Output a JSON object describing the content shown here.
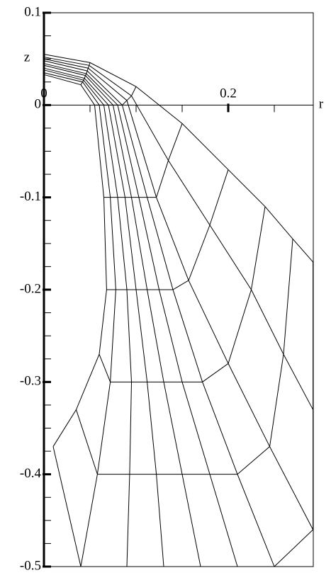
{
  "chart_data": {
    "type": "line",
    "xlabel": "r",
    "ylabel": "z",
    "xlim": [
      0,
      0.2923
    ],
    "ylim": [
      -0.5,
      0.1
    ],
    "xticks": [
      0,
      0.2
    ],
    "xminorticks": [
      0.05,
      0.1,
      0.15,
      0.25
    ],
    "yticks": [
      -0.5,
      -0.4,
      -0.3,
      -0.2,
      -0.1,
      0,
      0.1
    ],
    "yminorticks": [
      -0.475,
      -0.45,
      -0.425,
      -0.375,
      -0.35,
      -0.325,
      -0.275,
      -0.25,
      -0.225,
      -0.175,
      -0.15,
      -0.125,
      -0.075,
      -0.05,
      -0.025,
      0.025,
      0.05,
      0.075
    ],
    "connect_points": true,
    "series": [
      {
        "color": "#000000",
        "x": [
          0,
          0.04,
          0.055,
          0.065,
          0.068,
          0.06,
          0.035,
          0.01
        ],
        "values": [
          0.033,
          0.022,
          0,
          -0.1,
          -0.2,
          -0.27,
          -0.33,
          -0.37
        ]
      },
      {
        "color": "#000000",
        "x": [
          0,
          0.042,
          0.06,
          0.072,
          0.078,
          0.072,
          0.058,
          0.04
        ],
        "values": [
          0.035,
          0.025,
          0,
          -0.1,
          -0.2,
          -0.3,
          -0.4,
          -0.5
        ]
      },
      {
        "color": "#000000",
        "x": [
          0,
          0.043,
          0.065,
          0.08,
          0.09,
          0.095,
          0.093,
          0.09
        ],
        "values": [
          0.038,
          0.027,
          0,
          -0.1,
          -0.2,
          -0.3,
          -0.4,
          -0.5
        ]
      },
      {
        "color": "#000000",
        "x": [
          0,
          0.044,
          0.07,
          0.088,
          0.1,
          0.112,
          0.122,
          0.13
        ],
        "values": [
          0.04,
          0.029,
          0,
          -0.1,
          -0.2,
          -0.3,
          -0.4,
          -0.5
        ]
      },
      {
        "color": "#000000",
        "x": [
          0,
          0.045,
          0.075,
          0.095,
          0.112,
          0.13,
          0.15,
          0.17
        ],
        "values": [
          0.043,
          0.032,
          0,
          -0.1,
          -0.2,
          -0.3,
          -0.4,
          -0.5
        ]
      },
      {
        "color": "#000000",
        "x": [
          0,
          0.046,
          0.08,
          0.103,
          0.125,
          0.15,
          0.18,
          0.21
        ],
        "values": [
          0.045,
          0.034,
          0,
          -0.1,
          -0.2,
          -0.3,
          -0.4,
          -0.5
        ]
      },
      {
        "color": "#000000",
        "x": [
          0,
          0.047,
          0.085,
          0.112,
          0.14,
          0.172,
          0.21,
          0.25
        ],
        "values": [
          0.048,
          0.037,
          0,
          -0.1,
          -0.2,
          -0.3,
          -0.4,
          -0.5
        ]
      },
      {
        "color": "#000000",
        "x": [
          0,
          0.048,
          0.09,
          0.122,
          0.157,
          0.2,
          0.245,
          0.292
        ],
        "values": [
          0.05,
          0.04,
          0.005,
          -0.1,
          -0.19,
          -0.28,
          -0.37,
          -0.46
        ]
      },
      {
        "color": "#000000",
        "x": [
          0,
          0.049,
          0.095,
          0.135,
          0.18,
          0.225,
          0.26,
          0.292
        ],
        "values": [
          0.052,
          0.043,
          0.01,
          -0.06,
          -0.13,
          -0.2,
          -0.27,
          -0.33
        ]
      },
      {
        "color": "#000000",
        "x": [
          0,
          0.05,
          0.1,
          0.15,
          0.2,
          0.24,
          0.27,
          0.292
        ],
        "values": [
          0.055,
          0.046,
          0.02,
          -0.02,
          -0.07,
          -0.11,
          -0.145,
          -0.17
        ]
      }
    ]
  }
}
